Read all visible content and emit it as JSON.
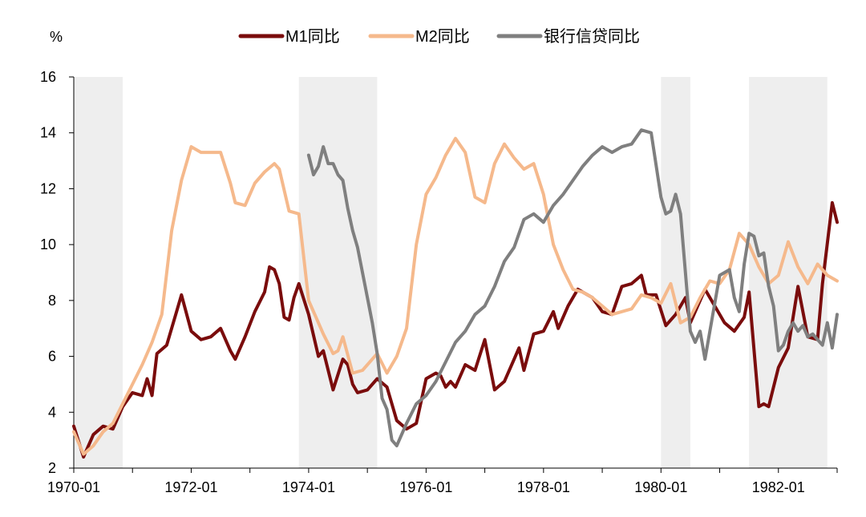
{
  "chart_data": {
    "type": "line",
    "ylabel": "%",
    "ylim": [
      2,
      16
    ],
    "y_ticks": [
      2,
      4,
      6,
      8,
      10,
      12,
      14,
      16
    ],
    "x_ticks": [
      "1970-01",
      "1972-01",
      "1974-01",
      "1976-01",
      "1978-01",
      "1980-01",
      "1982-01"
    ],
    "x_range": [
      "1970-01",
      "1983-01"
    ],
    "legend_position": "top",
    "grid": false,
    "shaded_periods": [
      [
        "1970-01",
        "1970-11"
      ],
      [
        "1973-11",
        "1975-03"
      ],
      [
        "1980-01",
        "1980-07"
      ],
      [
        "1981-07",
        "1982-11"
      ]
    ],
    "shade_color": "#eeeeee",
    "series": [
      {
        "name": "M1同比",
        "color": "#7a0c0c",
        "points": [
          [
            "1970-01",
            3.5
          ],
          [
            "1970-03",
            2.4
          ],
          [
            "1970-05",
            3.2
          ],
          [
            "1970-07",
            3.5
          ],
          [
            "1970-09",
            3.4
          ],
          [
            "1970-11",
            4.2
          ],
          [
            "1971-01",
            4.7
          ],
          [
            "1971-03",
            4.6
          ],
          [
            "1971-04",
            5.2
          ],
          [
            "1971-05",
            4.6
          ],
          [
            "1971-06",
            6.1
          ],
          [
            "1971-08",
            6.4
          ],
          [
            "1971-10",
            7.6
          ],
          [
            "1971-11",
            8.2
          ],
          [
            "1972-01",
            6.9
          ],
          [
            "1972-03",
            6.6
          ],
          [
            "1972-05",
            6.7
          ],
          [
            "1972-07",
            7.0
          ],
          [
            "1972-09",
            6.2
          ],
          [
            "1972-10",
            5.9
          ],
          [
            "1972-12",
            6.7
          ],
          [
            "1973-02",
            7.6
          ],
          [
            "1973-04",
            8.3
          ],
          [
            "1973-05",
            9.2
          ],
          [
            "1973-06",
            9.1
          ],
          [
            "1973-07",
            8.6
          ],
          [
            "1973-08",
            7.4
          ],
          [
            "1973-09",
            7.3
          ],
          [
            "1973-10",
            8.1
          ],
          [
            "1973-11",
            8.6
          ],
          [
            "1974-01",
            7.5
          ],
          [
            "1974-03",
            6.0
          ],
          [
            "1974-04",
            6.2
          ],
          [
            "1974-05",
            5.5
          ],
          [
            "1974-06",
            4.8
          ],
          [
            "1974-08",
            5.9
          ],
          [
            "1974-09",
            5.7
          ],
          [
            "1974-10",
            5.0
          ],
          [
            "1974-11",
            4.7
          ],
          [
            "1975-01",
            4.8
          ],
          [
            "1975-03",
            5.2
          ],
          [
            "1975-05",
            4.9
          ],
          [
            "1975-07",
            3.7
          ],
          [
            "1975-09",
            3.4
          ],
          [
            "1975-11",
            3.6
          ],
          [
            "1976-01",
            5.2
          ],
          [
            "1976-03",
            5.4
          ],
          [
            "1976-04",
            5.3
          ],
          [
            "1976-05",
            4.9
          ],
          [
            "1976-06",
            5.1
          ],
          [
            "1976-07",
            4.9
          ],
          [
            "1976-09",
            5.7
          ],
          [
            "1976-11",
            5.5
          ],
          [
            "1977-01",
            6.6
          ],
          [
            "1977-03",
            4.8
          ],
          [
            "1977-05",
            5.1
          ],
          [
            "1977-07",
            5.9
          ],
          [
            "1977-08",
            6.3
          ],
          [
            "1977-09",
            5.5
          ],
          [
            "1977-11",
            6.8
          ],
          [
            "1978-01",
            6.9
          ],
          [
            "1978-03",
            7.6
          ],
          [
            "1978-04",
            7.0
          ],
          [
            "1978-06",
            7.8
          ],
          [
            "1978-08",
            8.4
          ],
          [
            "1978-09",
            8.3
          ],
          [
            "1978-11",
            8.1
          ],
          [
            "1979-01",
            7.6
          ],
          [
            "1979-03",
            7.5
          ],
          [
            "1979-05",
            8.5
          ],
          [
            "1979-07",
            8.6
          ],
          [
            "1979-09",
            8.9
          ],
          [
            "1979-10",
            8.2
          ],
          [
            "1979-12",
            8.2
          ],
          [
            "1980-02",
            7.1
          ],
          [
            "1980-04",
            7.5
          ],
          [
            "1980-06",
            8.1
          ],
          [
            "1980-07",
            7.2
          ],
          [
            "1980-09",
            8.0
          ],
          [
            "1980-10",
            8.4
          ],
          [
            "1980-12",
            7.8
          ],
          [
            "1981-02",
            7.2
          ],
          [
            "1981-04",
            6.9
          ],
          [
            "1981-06",
            7.4
          ],
          [
            "1981-07",
            8.3
          ],
          [
            "1981-09",
            4.2
          ],
          [
            "1981-10",
            4.3
          ],
          [
            "1981-11",
            4.2
          ],
          [
            "1982-01",
            5.6
          ],
          [
            "1982-03",
            6.3
          ],
          [
            "1982-05",
            8.5
          ],
          [
            "1982-07",
            6.7
          ],
          [
            "1982-09",
            6.6
          ],
          [
            "1982-10",
            8.6
          ],
          [
            "1982-12",
            11.5
          ],
          [
            "1983-01",
            10.8
          ]
        ]
      },
      {
        "name": "M2同比",
        "color": "#f5b98c",
        "points": [
          [
            "1970-01",
            3.3
          ],
          [
            "1970-03",
            2.5
          ],
          [
            "1970-05",
            2.8
          ],
          [
            "1970-07",
            3.3
          ],
          [
            "1970-09",
            3.6
          ],
          [
            "1970-11",
            4.3
          ],
          [
            "1971-01",
            5.0
          ],
          [
            "1971-03",
            5.7
          ],
          [
            "1971-05",
            6.5
          ],
          [
            "1971-07",
            7.5
          ],
          [
            "1971-09",
            10.5
          ],
          [
            "1971-11",
            12.3
          ],
          [
            "1972-01",
            13.5
          ],
          [
            "1972-03",
            13.3
          ],
          [
            "1972-05",
            13.3
          ],
          [
            "1972-07",
            13.3
          ],
          [
            "1972-09",
            12.2
          ],
          [
            "1972-10",
            11.5
          ],
          [
            "1972-12",
            11.4
          ],
          [
            "1973-02",
            12.2
          ],
          [
            "1973-04",
            12.6
          ],
          [
            "1973-06",
            12.9
          ],
          [
            "1973-07",
            12.7
          ],
          [
            "1973-09",
            11.2
          ],
          [
            "1973-11",
            11.1
          ],
          [
            "1974-01",
            8.0
          ],
          [
            "1974-03",
            7.2
          ],
          [
            "1974-04",
            6.8
          ],
          [
            "1974-06",
            6.1
          ],
          [
            "1974-07",
            6.2
          ],
          [
            "1974-08",
            6.7
          ],
          [
            "1974-10",
            5.4
          ],
          [
            "1974-12",
            5.5
          ],
          [
            "1975-02",
            5.9
          ],
          [
            "1975-03",
            6.1
          ],
          [
            "1975-05",
            5.4
          ],
          [
            "1975-07",
            6.0
          ],
          [
            "1975-09",
            7.0
          ],
          [
            "1975-11",
            10.0
          ],
          [
            "1976-01",
            11.8
          ],
          [
            "1976-03",
            12.4
          ],
          [
            "1976-05",
            13.2
          ],
          [
            "1976-07",
            13.8
          ],
          [
            "1976-09",
            13.3
          ],
          [
            "1976-11",
            11.7
          ],
          [
            "1977-01",
            11.5
          ],
          [
            "1977-03",
            12.9
          ],
          [
            "1977-05",
            13.6
          ],
          [
            "1977-07",
            13.1
          ],
          [
            "1977-09",
            12.7
          ],
          [
            "1977-11",
            12.9
          ],
          [
            "1978-01",
            11.8
          ],
          [
            "1978-03",
            10.0
          ],
          [
            "1978-05",
            9.1
          ],
          [
            "1978-07",
            8.4
          ],
          [
            "1978-09",
            8.3
          ],
          [
            "1978-11",
            8.1
          ],
          [
            "1979-01",
            7.8
          ],
          [
            "1979-03",
            7.5
          ],
          [
            "1979-05",
            7.6
          ],
          [
            "1979-07",
            7.7
          ],
          [
            "1979-09",
            8.2
          ],
          [
            "1979-11",
            8.1
          ],
          [
            "1980-01",
            7.9
          ],
          [
            "1980-03",
            8.6
          ],
          [
            "1980-05",
            7.2
          ],
          [
            "1980-07",
            7.4
          ],
          [
            "1980-09",
            8.1
          ],
          [
            "1980-11",
            8.7
          ],
          [
            "1981-01",
            8.6
          ],
          [
            "1981-03",
            9.1
          ],
          [
            "1981-05",
            10.4
          ],
          [
            "1981-07",
            10.0
          ],
          [
            "1981-09",
            9.2
          ],
          [
            "1981-11",
            8.6
          ],
          [
            "1982-01",
            8.9
          ],
          [
            "1982-03",
            10.1
          ],
          [
            "1982-05",
            9.2
          ],
          [
            "1982-07",
            8.6
          ],
          [
            "1982-09",
            9.3
          ],
          [
            "1982-11",
            8.9
          ],
          [
            "1983-01",
            8.7
          ]
        ]
      },
      {
        "name": "银行信贷同比",
        "color": "#7f7f7f",
        "points": [
          [
            "1974-01",
            13.2
          ],
          [
            "1974-02",
            12.5
          ],
          [
            "1974-03",
            12.8
          ],
          [
            "1974-04",
            13.5
          ],
          [
            "1974-05",
            12.9
          ],
          [
            "1974-06",
            12.9
          ],
          [
            "1974-07",
            12.5
          ],
          [
            "1974-08",
            12.3
          ],
          [
            "1974-09",
            11.3
          ],
          [
            "1974-10",
            10.5
          ],
          [
            "1974-11",
            9.9
          ],
          [
            "1975-01",
            8.1
          ],
          [
            "1975-02",
            7.2
          ],
          [
            "1975-03",
            6.1
          ],
          [
            "1975-04",
            4.5
          ],
          [
            "1975-05",
            4.1
          ],
          [
            "1975-06",
            3.0
          ],
          [
            "1975-07",
            2.8
          ],
          [
            "1975-09",
            3.6
          ],
          [
            "1975-11",
            4.3
          ],
          [
            "1976-01",
            4.6
          ],
          [
            "1976-03",
            5.1
          ],
          [
            "1976-05",
            5.8
          ],
          [
            "1976-07",
            6.5
          ],
          [
            "1976-09",
            6.9
          ],
          [
            "1976-11",
            7.5
          ],
          [
            "1977-01",
            7.8
          ],
          [
            "1977-03",
            8.5
          ],
          [
            "1977-05",
            9.4
          ],
          [
            "1977-07",
            9.9
          ],
          [
            "1977-09",
            10.9
          ],
          [
            "1977-11",
            11.1
          ],
          [
            "1978-01",
            10.8
          ],
          [
            "1978-03",
            11.4
          ],
          [
            "1978-05",
            11.8
          ],
          [
            "1978-07",
            12.3
          ],
          [
            "1978-09",
            12.8
          ],
          [
            "1978-11",
            13.2
          ],
          [
            "1979-01",
            13.5
          ],
          [
            "1979-03",
            13.3
          ],
          [
            "1979-05",
            13.5
          ],
          [
            "1979-07",
            13.6
          ],
          [
            "1979-09",
            14.1
          ],
          [
            "1979-11",
            14.0
          ],
          [
            "1980-01",
            11.7
          ],
          [
            "1980-02",
            11.1
          ],
          [
            "1980-03",
            11.2
          ],
          [
            "1980-04",
            11.8
          ],
          [
            "1980-05",
            11.1
          ],
          [
            "1980-06",
            9.0
          ],
          [
            "1980-07",
            6.9
          ],
          [
            "1980-08",
            6.5
          ],
          [
            "1980-09",
            6.9
          ],
          [
            "1980-10",
            5.9
          ],
          [
            "1980-11",
            6.9
          ],
          [
            "1981-01",
            8.9
          ],
          [
            "1981-03",
            9.1
          ],
          [
            "1981-04",
            8.1
          ],
          [
            "1981-05",
            7.6
          ],
          [
            "1981-06",
            9.3
          ],
          [
            "1981-07",
            10.4
          ],
          [
            "1981-08",
            10.3
          ],
          [
            "1981-09",
            9.6
          ],
          [
            "1981-10",
            9.7
          ],
          [
            "1981-11",
            8.5
          ],
          [
            "1981-12",
            7.8
          ],
          [
            "1982-01",
            6.2
          ],
          [
            "1982-02",
            6.4
          ],
          [
            "1982-03",
            6.9
          ],
          [
            "1982-04",
            7.2
          ],
          [
            "1982-05",
            6.9
          ],
          [
            "1982-06",
            7.1
          ],
          [
            "1982-07",
            6.7
          ],
          [
            "1982-08",
            6.8
          ],
          [
            "1982-09",
            6.6
          ],
          [
            "1982-10",
            6.4
          ],
          [
            "1982-11",
            7.2
          ],
          [
            "1982-12",
            6.3
          ],
          [
            "1983-01",
            7.5
          ]
        ]
      }
    ]
  }
}
